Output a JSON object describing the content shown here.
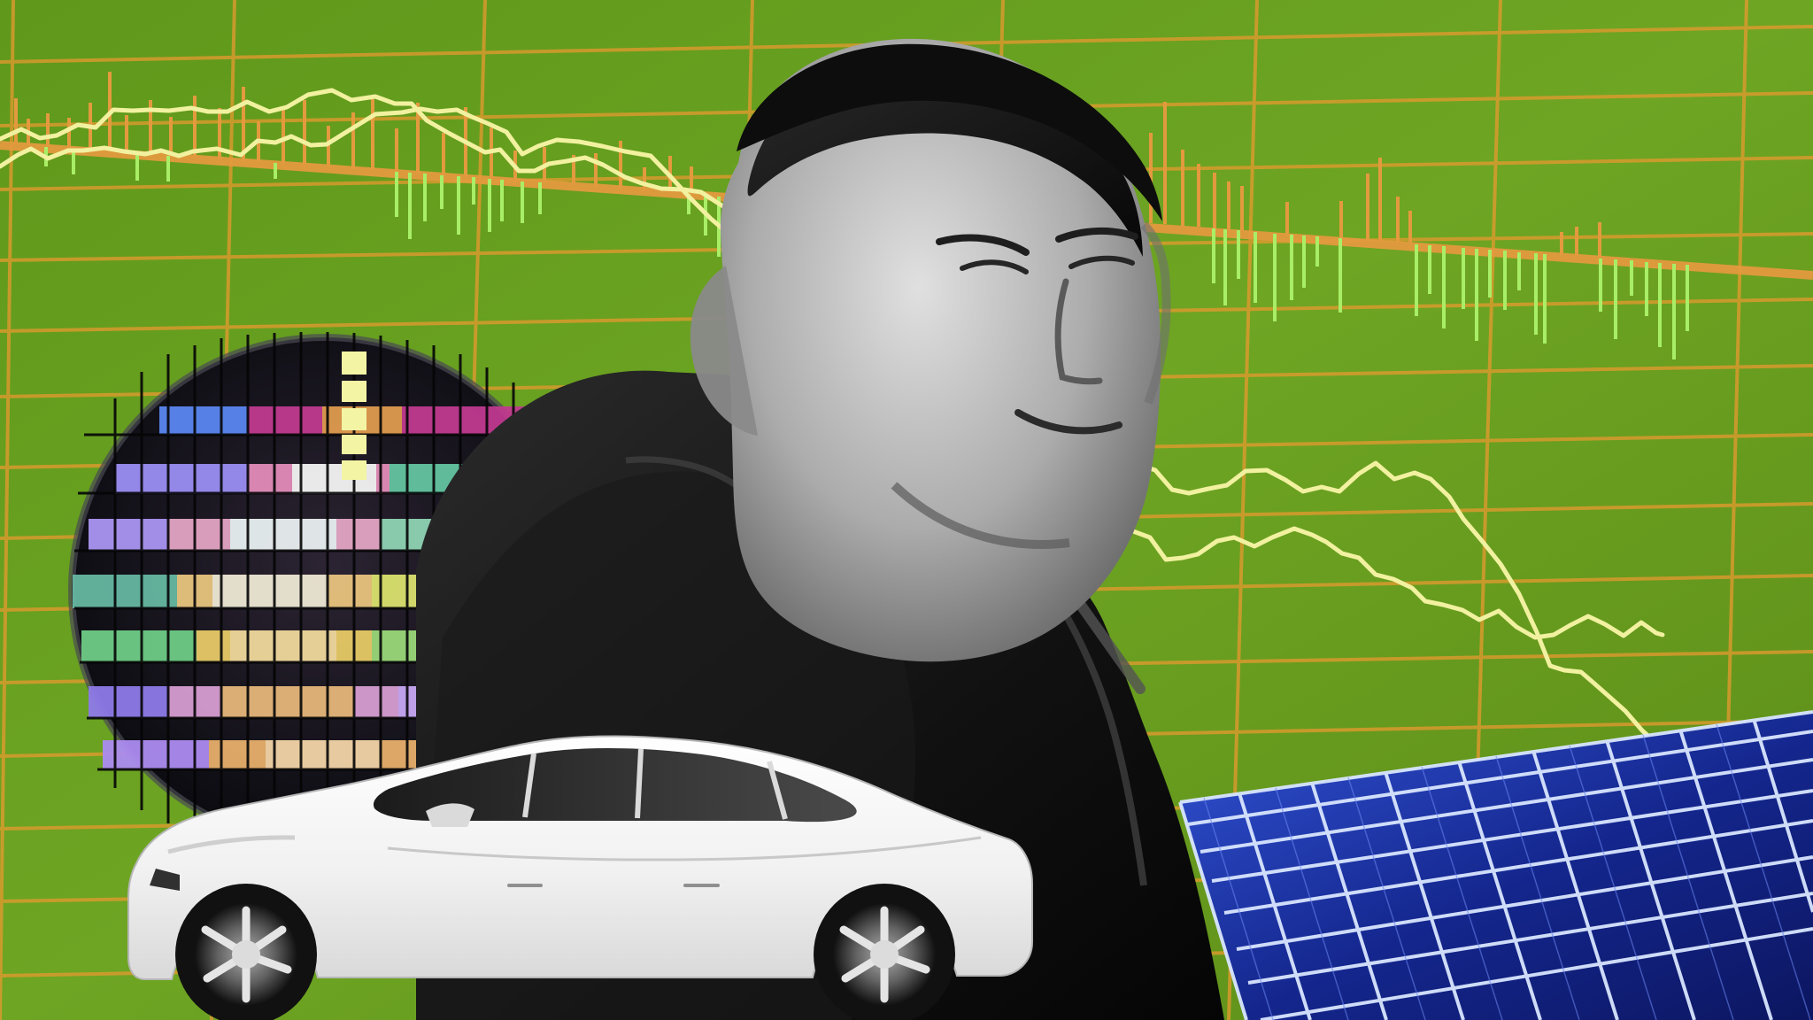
{
  "scene": {
    "kind": "photo-illustration collage",
    "subjects": [
      "man-in-dark-jacket",
      "semiconductor-wafer",
      "white-electric-car",
      "solar-panel-array",
      "stock-ticker-chart-background"
    ]
  },
  "colors": {
    "background_green": "#6C9D1F",
    "grid_orange": "#E69A2F",
    "chart_yellow": "#F1F1A0",
    "bar_green": "#A8EE66",
    "bar_orange": "#E39A3E",
    "wafer_base": "#090A0E",
    "solar_blue": "#14268D",
    "car_white": "#F3F3F3"
  }
}
